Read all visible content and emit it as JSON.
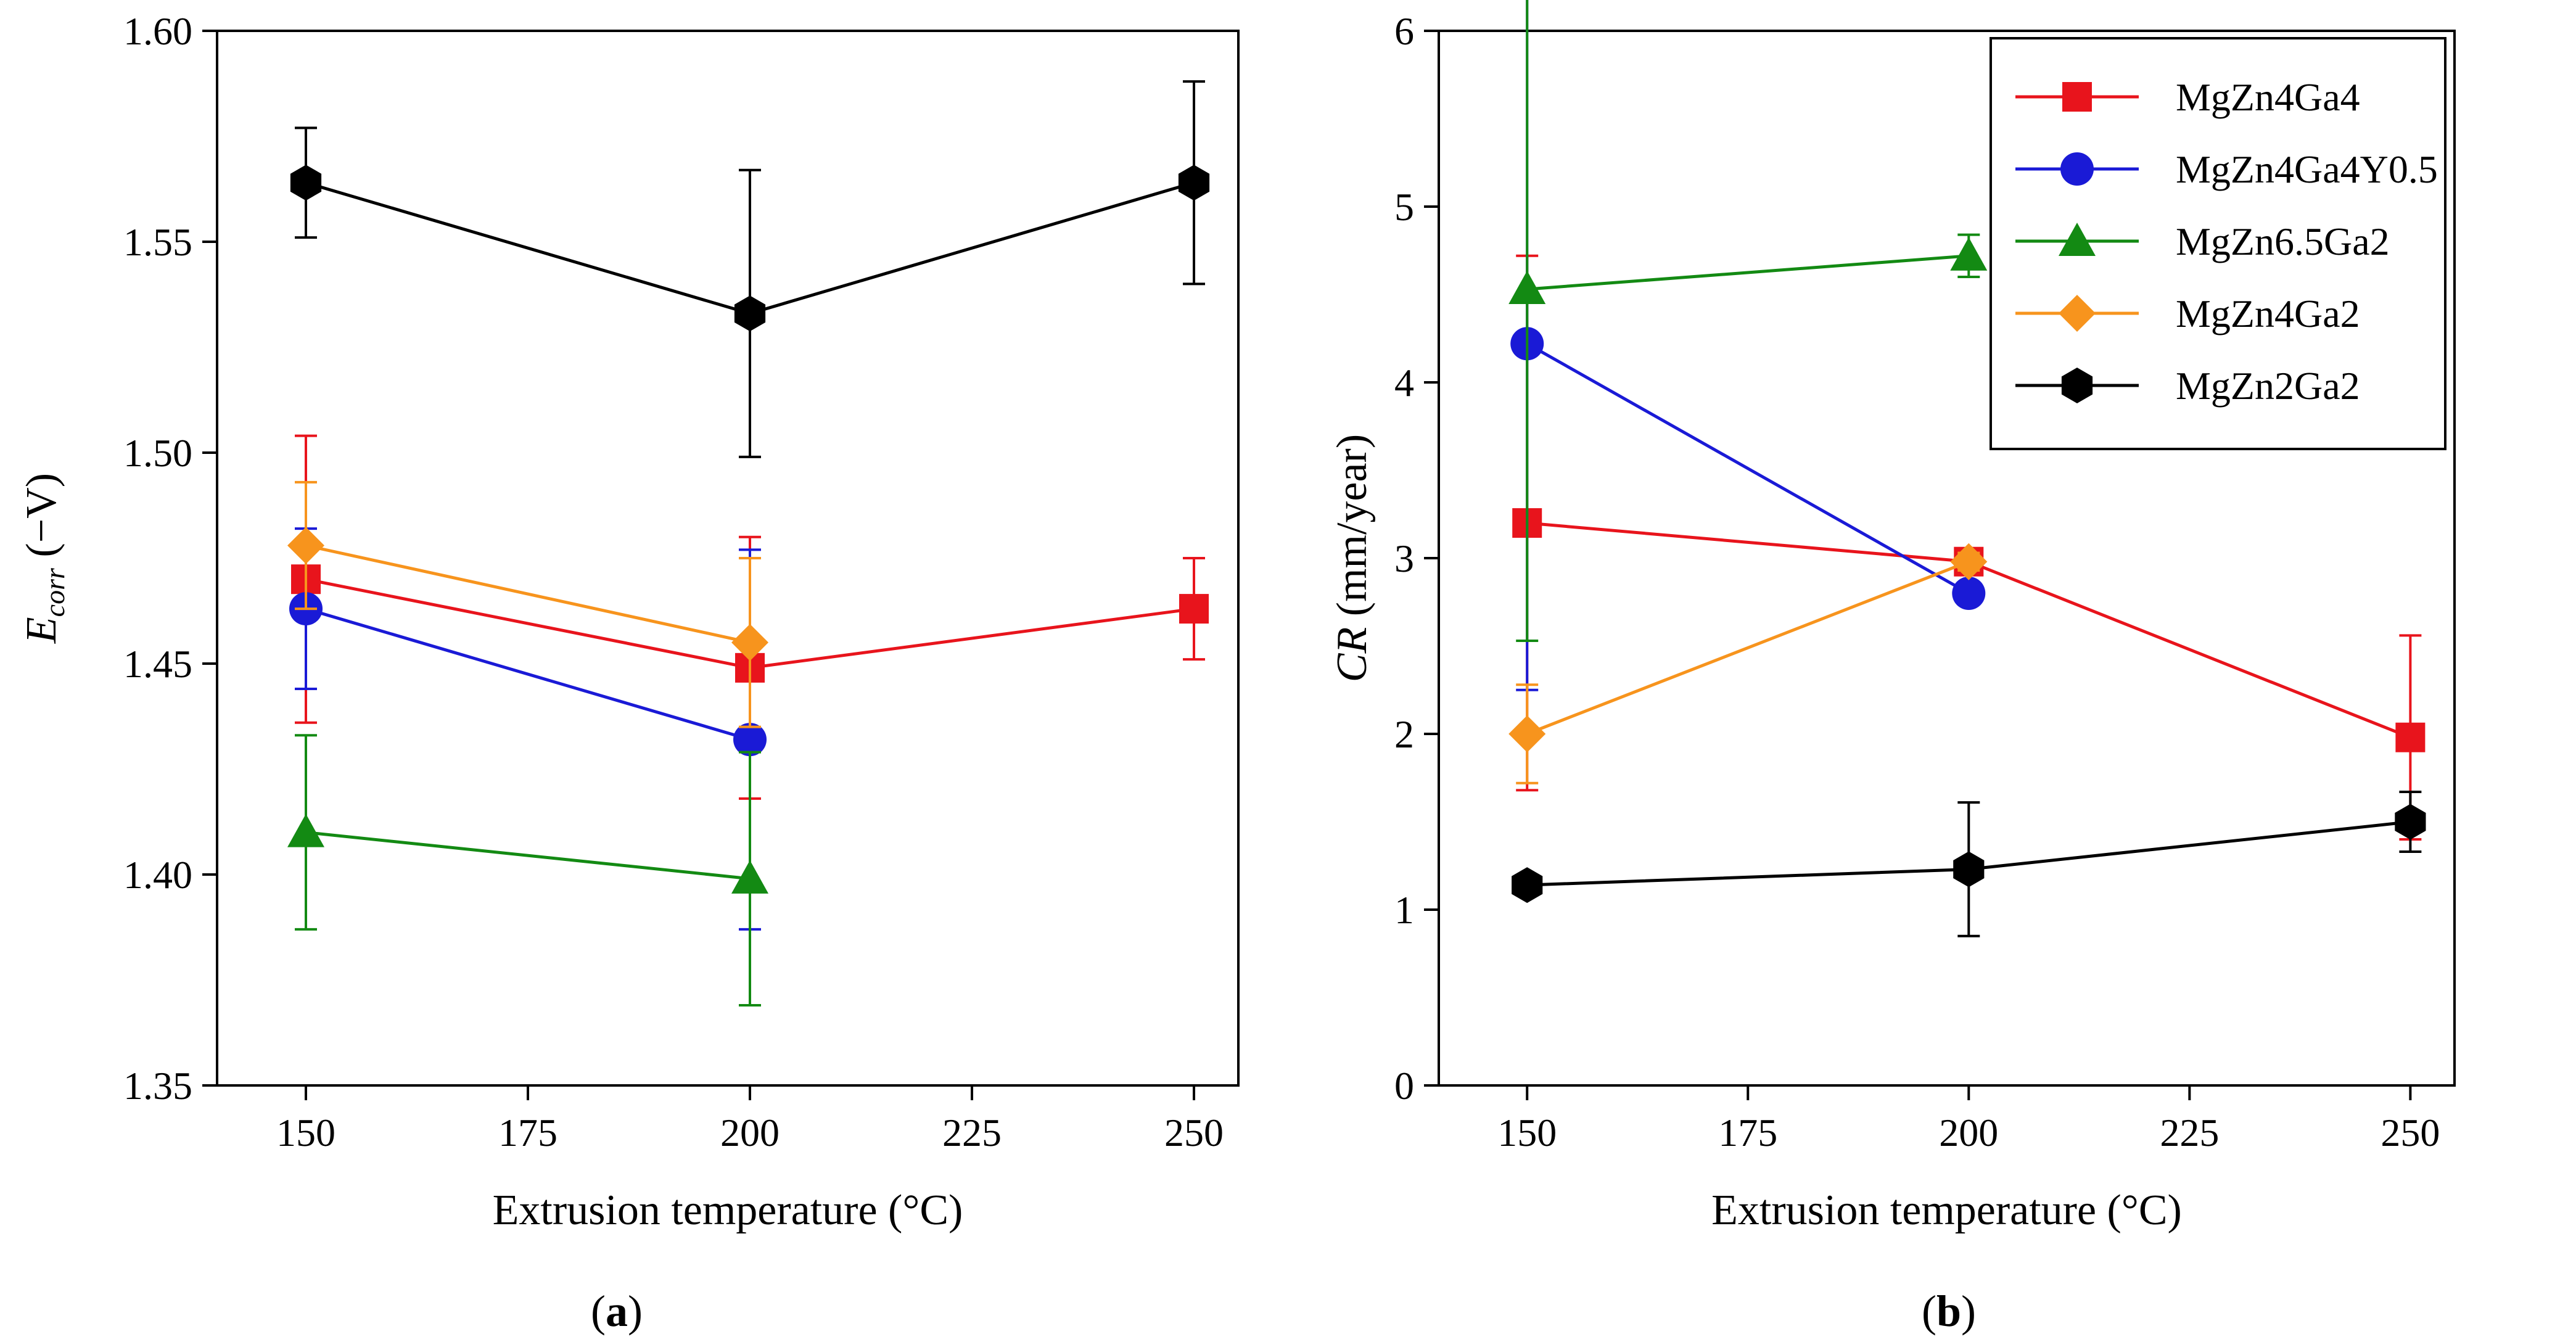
{
  "chart_data": [
    {
      "type": "line",
      "panel_label": "(a)",
      "xlabel": "Extrusion temperature (°C)",
      "ylabel": "E_corr (−V)",
      "ylabel_parts": {
        "main": "E",
        "sub": "corr",
        "rest": " (−V)"
      },
      "xlim": [
        140,
        255
      ],
      "ylim": [
        1.35,
        1.6
      ],
      "xticks": [
        150,
        175,
        200,
        225,
        250
      ],
      "yticks": [
        1.35,
        1.4,
        1.45,
        1.5,
        1.55,
        1.6
      ],
      "ytick_labels": [
        "1.35",
        "1.40",
        "1.45",
        "1.50",
        "1.55",
        "1.60"
      ],
      "series": [
        {
          "name": "MgZn4Ga4",
          "color": "#e8141c",
          "marker": "square",
          "x": [
            150,
            200,
            250
          ],
          "y": [
            1.47,
            1.449,
            1.463
          ],
          "err": [
            0.034,
            0.031,
            0.012
          ]
        },
        {
          "name": "MgZn4Ga4Y0.5",
          "color": "#1a1ad6",
          "marker": "circle",
          "x": [
            150,
            200
          ],
          "y": [
            1.463,
            1.432
          ],
          "err": [
            0.019,
            0.045
          ]
        },
        {
          "name": "MgZn6.5Ga2",
          "color": "#138a13",
          "marker": "triangle",
          "x": [
            150,
            200
          ],
          "y": [
            1.41,
            1.399
          ],
          "err": [
            0.023,
            0.03
          ]
        },
        {
          "name": "MgZn4Ga2",
          "color": "#f7941d",
          "marker": "diamond",
          "x": [
            150,
            200
          ],
          "y": [
            1.478,
            1.455
          ],
          "err": [
            0.015,
            0.02
          ]
        },
        {
          "name": "MgZn2Ga2",
          "color": "#000000",
          "marker": "hexagon",
          "x": [
            150,
            200,
            250
          ],
          "y": [
            1.564,
            1.533,
            1.564
          ],
          "err": [
            0.013,
            0.034,
            0.024
          ]
        }
      ]
    },
    {
      "type": "line",
      "panel_label": "(b)",
      "xlabel": "Extrusion temperature (°C)",
      "ylabel": "CR (mm/year)",
      "ylabel_parts": {
        "main": "CR",
        "rest": " (mm/year)"
      },
      "xlim": [
        140,
        255
      ],
      "ylim": [
        0,
        6
      ],
      "xticks": [
        150,
        175,
        200,
        225,
        250
      ],
      "yticks": [
        0,
        1,
        2,
        3,
        4,
        5,
        6
      ],
      "ytick_labels": [
        "0",
        "1",
        "2",
        "3",
        "4",
        "5",
        "6"
      ],
      "legend_position": "top-right",
      "series": [
        {
          "name": "MgZn4Ga4",
          "color": "#e8141c",
          "marker": "square",
          "x": [
            150,
            200,
            250
          ],
          "y": [
            3.2,
            2.98,
            1.98
          ],
          "err": [
            1.52,
            0.05,
            0.58
          ]
        },
        {
          "name": "MgZn4Ga4Y0.5",
          "color": "#1a1ad6",
          "marker": "circle",
          "x": [
            150,
            200
          ],
          "y": [
            4.22,
            2.8
          ],
          "err": [
            1.97,
            0.05
          ]
        },
        {
          "name": "MgZn6.5Ga2",
          "color": "#138a13",
          "marker": "triangle",
          "x": [
            150,
            200
          ],
          "y": [
            4.53,
            4.72
          ],
          "err": [
            2.0,
            0.12
          ]
        },
        {
          "name": "MgZn4Ga2",
          "color": "#f7941d",
          "marker": "diamond",
          "x": [
            150,
            200
          ],
          "y": [
            2.0,
            2.98
          ],
          "err": [
            0.28,
            0.05
          ]
        },
        {
          "name": "MgZn2Ga2",
          "color": "#000000",
          "marker": "hexagon",
          "x": [
            150,
            200,
            250
          ],
          "y": [
            1.14,
            1.23,
            1.5
          ],
          "err": [
            0.02,
            0.38,
            0.17
          ]
        }
      ]
    }
  ]
}
